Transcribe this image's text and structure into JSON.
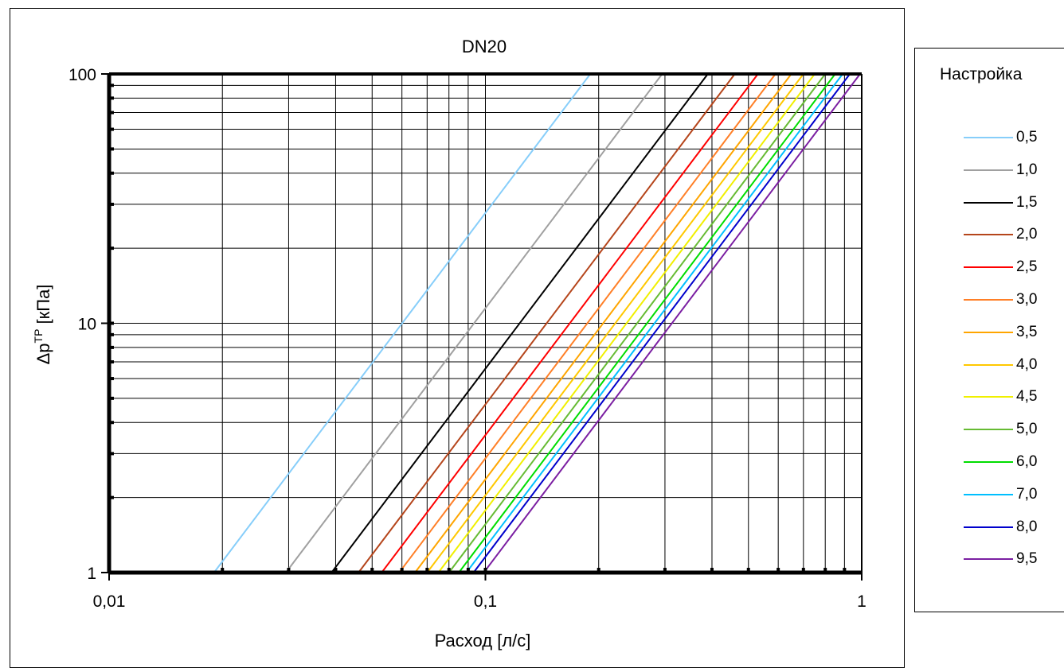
{
  "chart_data": {
    "type": "line",
    "title": "DN20",
    "xlabel": "Расход [л/с]",
    "ylabel_main": "Δp",
    "ylabel_sup": "TP",
    "ylabel_unit": " [кПа]",
    "x_scale": "log",
    "y_scale": "log",
    "xlim": [
      0.01,
      1
    ],
    "ylim": [
      1,
      100
    ],
    "x_ticks": [
      {
        "value": 0.01,
        "label": "0,01"
      },
      {
        "value": 0.1,
        "label": "0,1"
      },
      {
        "value": 1,
        "label": "1"
      }
    ],
    "y_ticks": [
      {
        "value": 1,
        "label": "1"
      },
      {
        "value": 10,
        "label": "10"
      },
      {
        "value": 100,
        "label": "100"
      }
    ],
    "grid": true,
    "legend_title": "Настройка",
    "legend_position": "right",
    "series": [
      {
        "name": "0,5",
        "color": "#87CEFA",
        "points": [
          [
            0.019,
            1
          ],
          [
            0.19,
            100
          ]
        ]
      },
      {
        "name": "1,0",
        "color": "#A0A0A0",
        "points": [
          [
            0.0295,
            1
          ],
          [
            0.295,
            100
          ]
        ]
      },
      {
        "name": "1,5",
        "color": "#000000",
        "points": [
          [
            0.039,
            1
          ],
          [
            0.39,
            100
          ]
        ]
      },
      {
        "name": "2,0",
        "color": "#B5451B",
        "points": [
          [
            0.046,
            1
          ],
          [
            0.46,
            100
          ]
        ]
      },
      {
        "name": "2,5",
        "color": "#FF0000",
        "points": [
          [
            0.053,
            1
          ],
          [
            0.53,
            100
          ]
        ]
      },
      {
        "name": "3,0",
        "color": "#FF7F27",
        "points": [
          [
            0.059,
            1
          ],
          [
            0.59,
            100
          ]
        ]
      },
      {
        "name": "3,5",
        "color": "#FFA500",
        "points": [
          [
            0.065,
            1
          ],
          [
            0.65,
            100
          ]
        ]
      },
      {
        "name": "4,0",
        "color": "#FFC800",
        "points": [
          [
            0.07,
            1
          ],
          [
            0.7,
            100
          ]
        ]
      },
      {
        "name": "4,5",
        "color": "#F0F000",
        "points": [
          [
            0.075,
            1
          ],
          [
            0.75,
            100
          ]
        ]
      },
      {
        "name": "5,0",
        "color": "#66BB33",
        "points": [
          [
            0.08,
            1
          ],
          [
            0.8,
            100
          ]
        ]
      },
      {
        "name": "6,0",
        "color": "#00DD00",
        "points": [
          [
            0.085,
            1
          ],
          [
            0.85,
            100
          ]
        ]
      },
      {
        "name": "7,0",
        "color": "#00BFFF",
        "points": [
          [
            0.089,
            1
          ],
          [
            0.89,
            100
          ]
        ]
      },
      {
        "name": "8,0",
        "color": "#0000CC",
        "points": [
          [
            0.093,
            1
          ],
          [
            0.93,
            100
          ]
        ]
      },
      {
        "name": "9,5",
        "color": "#7B1FA2",
        "points": [
          [
            0.099,
            1
          ],
          [
            0.99,
            100
          ]
        ]
      }
    ]
  }
}
